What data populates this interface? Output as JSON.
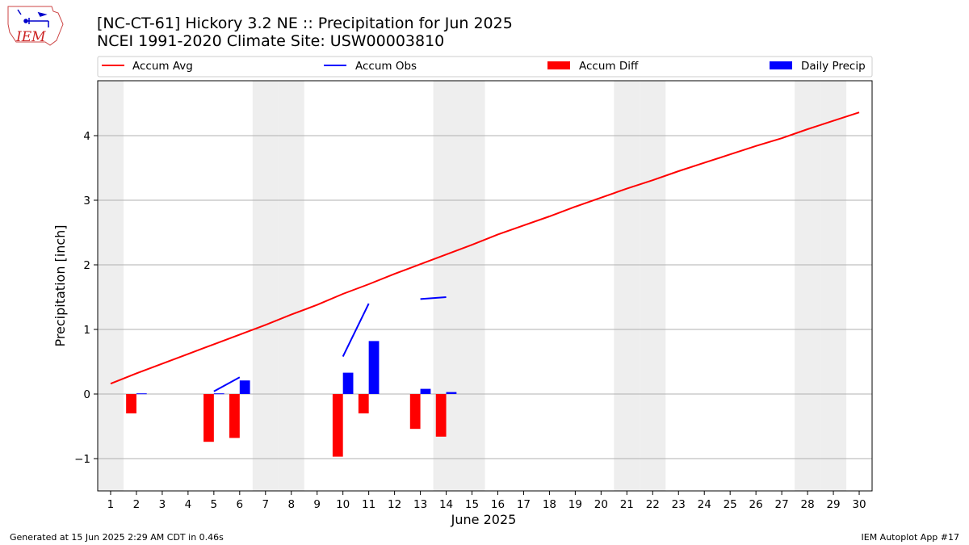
{
  "header": {
    "title_line1": "[NC-CT-61] Hickory 3.2 NE :: Precipitation for Jun 2025",
    "title_line2": "NCEI 1991-2020 Climate Site: USW00003810"
  },
  "logo": {
    "text": "IEM"
  },
  "footer": {
    "generated": "Generated at 15 Jun 2025 2:29 AM CDT in 0.46s",
    "app": "IEM Autoplot App #17"
  },
  "colors": {
    "accum_avg": "#ff0000",
    "accum_obs": "#0000ff",
    "accum_diff": "#ff0000",
    "daily_precip": "#0000ff",
    "weekend_shade": "#eeeeee",
    "grid": "#b0b0b0"
  },
  "chart_data": {
    "type": "bar",
    "xlabel": "June 2025",
    "ylabel": "Precipitation [inch]",
    "xlim": [
      0.5,
      30.5
    ],
    "ylim": [
      -1.5,
      4.85
    ],
    "y_ticks": [
      -1,
      0,
      1,
      2,
      3,
      4
    ],
    "x_ticks": [
      1,
      2,
      3,
      4,
      5,
      6,
      7,
      8,
      9,
      10,
      11,
      12,
      13,
      14,
      15,
      16,
      17,
      18,
      19,
      20,
      21,
      22,
      23,
      24,
      25,
      26,
      27,
      28,
      29,
      30
    ],
    "grid": "horizontal",
    "legend_position": "top",
    "legend": [
      {
        "label": "Accum Avg",
        "kind": "line",
        "color": "#ff0000"
      },
      {
        "label": "Accum Obs",
        "kind": "line",
        "color": "#0000ff"
      },
      {
        "label": "Accum Diff",
        "kind": "bar",
        "color": "#ff0000"
      },
      {
        "label": "Daily Precip",
        "kind": "bar",
        "color": "#0000ff"
      }
    ],
    "weekend_days": [
      1,
      7,
      8,
      14,
      15,
      21,
      22,
      28,
      29
    ],
    "accum_avg": [
      0.16,
      0.32,
      0.47,
      0.62,
      0.77,
      0.92,
      1.07,
      1.23,
      1.38,
      1.55,
      1.7,
      1.86,
      2.01,
      2.16,
      2.31,
      2.47,
      2.61,
      2.75,
      2.9,
      3.04,
      3.18,
      3.31,
      3.45,
      3.58,
      3.71,
      3.84,
      3.96,
      4.1,
      4.23,
      4.36
    ],
    "accum_obs_segments": [
      [
        [
          5,
          0.04
        ],
        [
          6,
          0.26
        ]
      ],
      [
        [
          10,
          0.58
        ],
        [
          11,
          1.4
        ]
      ],
      [
        [
          13,
          1.47
        ],
        [
          14,
          1.5
        ]
      ]
    ],
    "accum_diff": [
      {
        "day": 2,
        "value": -0.3
      },
      {
        "day": 5,
        "value": -0.74
      },
      {
        "day": 6,
        "value": -0.68
      },
      {
        "day": 10,
        "value": -0.97
      },
      {
        "day": 11,
        "value": -0.3
      },
      {
        "day": 13,
        "value": -0.54
      },
      {
        "day": 14,
        "value": -0.66
      }
    ],
    "daily_precip": [
      {
        "day": 2,
        "value": 0.01
      },
      {
        "day": 5,
        "value": 0.01
      },
      {
        "day": 6,
        "value": 0.21
      },
      {
        "day": 10,
        "value": 0.33
      },
      {
        "day": 11,
        "value": 0.82
      },
      {
        "day": 13,
        "value": 0.08
      },
      {
        "day": 14,
        "value": 0.03
      }
    ]
  }
}
